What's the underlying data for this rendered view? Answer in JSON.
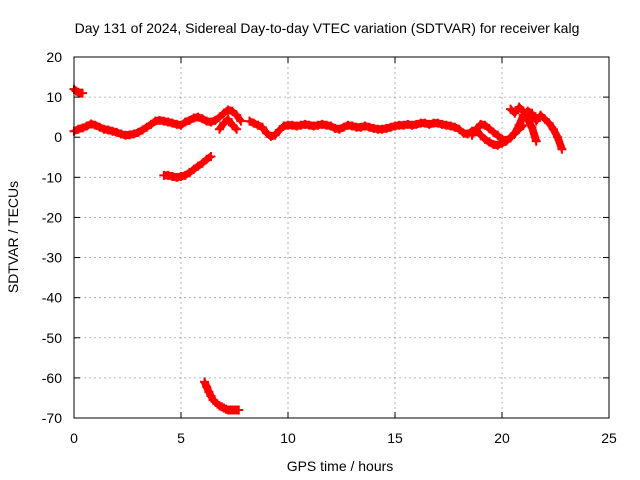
{
  "chart_data": {
    "type": "scatter",
    "title": "Day 131 of 2024, Sidereal Day-to-day VTEC variation (SDTVAR) for receiver kalg",
    "xlabel": "GPS time / hours",
    "ylabel": "SDTVAR / TECUs",
    "xlim": [
      0,
      25
    ],
    "ylim": [
      -70,
      20
    ],
    "xticks": [
      0,
      5,
      10,
      15,
      20,
      25
    ],
    "yticks": [
      -70,
      -60,
      -50,
      -40,
      -30,
      -20,
      -10,
      0,
      10,
      20
    ],
    "grid": true,
    "marker": "plus",
    "colors": {
      "series": "#ff0000",
      "grid": "#a0a0a0",
      "axis": "#000000"
    },
    "series": [
      {
        "name": "segment-1",
        "x": [
          0.0,
          0.1,
          0.2,
          0.3,
          0.4
        ],
        "y": [
          12.0,
          11.5,
          11.2,
          11.0,
          11.0
        ]
      },
      {
        "name": "segment-2",
        "x": [
          0.0,
          0.2,
          0.4,
          0.6,
          0.8,
          1.0,
          1.2,
          1.4,
          1.6,
          1.8,
          2.0,
          2.2,
          2.4,
          2.6,
          2.8,
          3.0,
          3.2,
          3.4,
          3.6,
          3.8,
          4.0,
          4.2,
          4.4,
          4.6,
          4.8,
          5.0,
          5.2,
          5.4,
          5.6,
          5.8,
          6.0,
          6.2,
          6.4,
          6.6,
          6.8,
          7.0,
          7.2,
          7.4,
          7.6,
          7.8
        ],
        "y": [
          1.5,
          2.0,
          2.3,
          2.8,
          3.3,
          3.0,
          2.5,
          2.0,
          1.8,
          1.5,
          1.2,
          0.8,
          0.5,
          0.6,
          0.8,
          1.2,
          1.8,
          2.5,
          3.2,
          4.0,
          4.2,
          4.0,
          3.8,
          3.5,
          3.2,
          3.0,
          3.8,
          4.2,
          4.8,
          5.0,
          4.6,
          4.0,
          3.8,
          4.2,
          5.0,
          6.0,
          6.8,
          6.5,
          5.5,
          4.0
        ]
      },
      {
        "name": "segment-3",
        "x": [
          6.8,
          7.0,
          7.2,
          7.4,
          7.6
        ],
        "y": [
          2.0,
          3.5,
          4.5,
          3.0,
          2.0
        ]
      },
      {
        "name": "segment-4",
        "x": [
          4.2,
          4.4,
          4.6,
          4.8,
          5.0,
          5.2,
          5.4,
          5.6,
          5.8,
          6.0,
          6.2,
          6.4
        ],
        "y": [
          -9.5,
          -9.5,
          -9.8,
          -10.0,
          -9.8,
          -9.5,
          -8.8,
          -8.0,
          -7.2,
          -6.5,
          -5.5,
          -4.8
        ]
      },
      {
        "name": "segment-5",
        "x": [
          6.1,
          6.2,
          6.3,
          6.4,
          6.5,
          6.6,
          6.7,
          6.8,
          6.9,
          7.0,
          7.1,
          7.2,
          7.3,
          7.4,
          7.5,
          7.6,
          7.7
        ],
        "y": [
          -61.0,
          -62.2,
          -63.5,
          -64.5,
          -65.5,
          -66.0,
          -66.5,
          -67.0,
          -67.2,
          -67.5,
          -67.8,
          -68.0,
          -68.0,
          -68.0,
          -68.0,
          -68.0,
          -68.0
        ]
      },
      {
        "name": "segment-6",
        "x": [
          8.2,
          8.4,
          8.6,
          8.8,
          9.0,
          9.2,
          9.4,
          9.6,
          9.8,
          10.0,
          10.2,
          10.4,
          10.6,
          10.8,
          11.0,
          11.2,
          11.4,
          11.6,
          11.8,
          12.0,
          12.2,
          12.4,
          12.6,
          12.8,
          13.0,
          13.2,
          13.4,
          13.6,
          13.8,
          14.0,
          14.2,
          14.4,
          14.6,
          14.8,
          15.0,
          15.2,
          15.4,
          15.6,
          15.8,
          16.0,
          16.2,
          16.4,
          16.6,
          16.8,
          17.0,
          17.2,
          17.4,
          17.6,
          17.8,
          18.0,
          18.2,
          18.4,
          18.6,
          18.8,
          19.0,
          19.2,
          19.4,
          19.6,
          19.8,
          20.0,
          20.2,
          20.4,
          20.6,
          20.8,
          21.0
        ],
        "y": [
          4.0,
          3.5,
          3.0,
          2.5,
          1.0,
          0.2,
          0.5,
          1.8,
          2.8,
          3.0,
          3.0,
          2.8,
          3.0,
          3.2,
          3.0,
          2.8,
          3.0,
          3.2,
          3.0,
          2.8,
          2.2,
          2.0,
          2.5,
          3.0,
          2.8,
          2.5,
          2.5,
          2.8,
          2.5,
          2.2,
          2.0,
          2.0,
          2.2,
          2.5,
          2.8,
          3.0,
          3.0,
          3.2,
          3.0,
          3.2,
          3.5,
          3.5,
          3.2,
          3.5,
          3.5,
          3.2,
          3.0,
          2.8,
          2.5,
          2.0,
          1.0,
          0.8,
          1.5,
          1.8,
          0.5,
          -0.5,
          -1.2,
          -1.8,
          -2.0,
          -1.5,
          -1.0,
          0.0,
          1.0,
          2.0,
          3.0
        ]
      },
      {
        "name": "segment-7",
        "x": [
          18.6,
          18.8,
          19.0,
          19.2,
          19.4,
          19.6,
          19.8,
          20.0,
          20.2,
          20.4,
          20.6,
          20.8,
          21.0,
          21.2,
          21.4,
          21.6,
          21.8,
          22.0,
          22.2,
          22.4,
          22.6,
          22.8
        ],
        "y": [
          0.5,
          2.0,
          3.2,
          3.0,
          2.2,
          1.2,
          0.5,
          -0.5,
          -0.8,
          -0.2,
          1.0,
          3.0,
          5.5,
          6.5,
          6.0,
          4.0,
          5.5,
          4.5,
          3.5,
          2.0,
          0.0,
          -3.0
        ]
      },
      {
        "name": "segment-8",
        "x": [
          20.4,
          20.6,
          20.8,
          21.0,
          21.2,
          21.4,
          21.6
        ],
        "y": [
          7.0,
          6.0,
          7.5,
          6.5,
          4.5,
          2.5,
          -1.0
        ]
      }
    ]
  }
}
